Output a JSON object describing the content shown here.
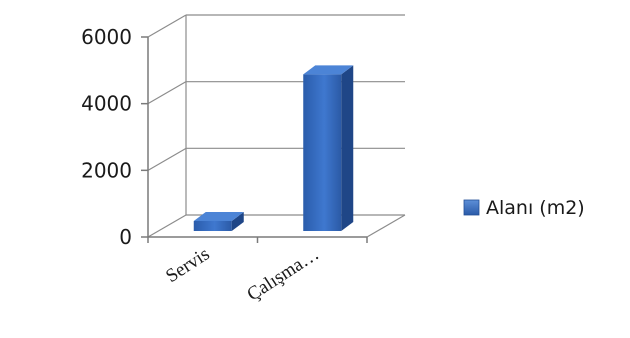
{
  "chart_data": {
    "type": "bar",
    "categories": [
      "Servis",
      "Çalışma…"
    ],
    "series": [
      {
        "name": "Alanı (m2)",
        "values": [
          300,
          4700
        ],
        "color": "#2f62b8"
      }
    ],
    "ylim": [
      0,
      6000
    ],
    "yticks": [
      0,
      2000,
      4000,
      6000
    ],
    "grid": true,
    "legend": "right",
    "three_d": true
  }
}
